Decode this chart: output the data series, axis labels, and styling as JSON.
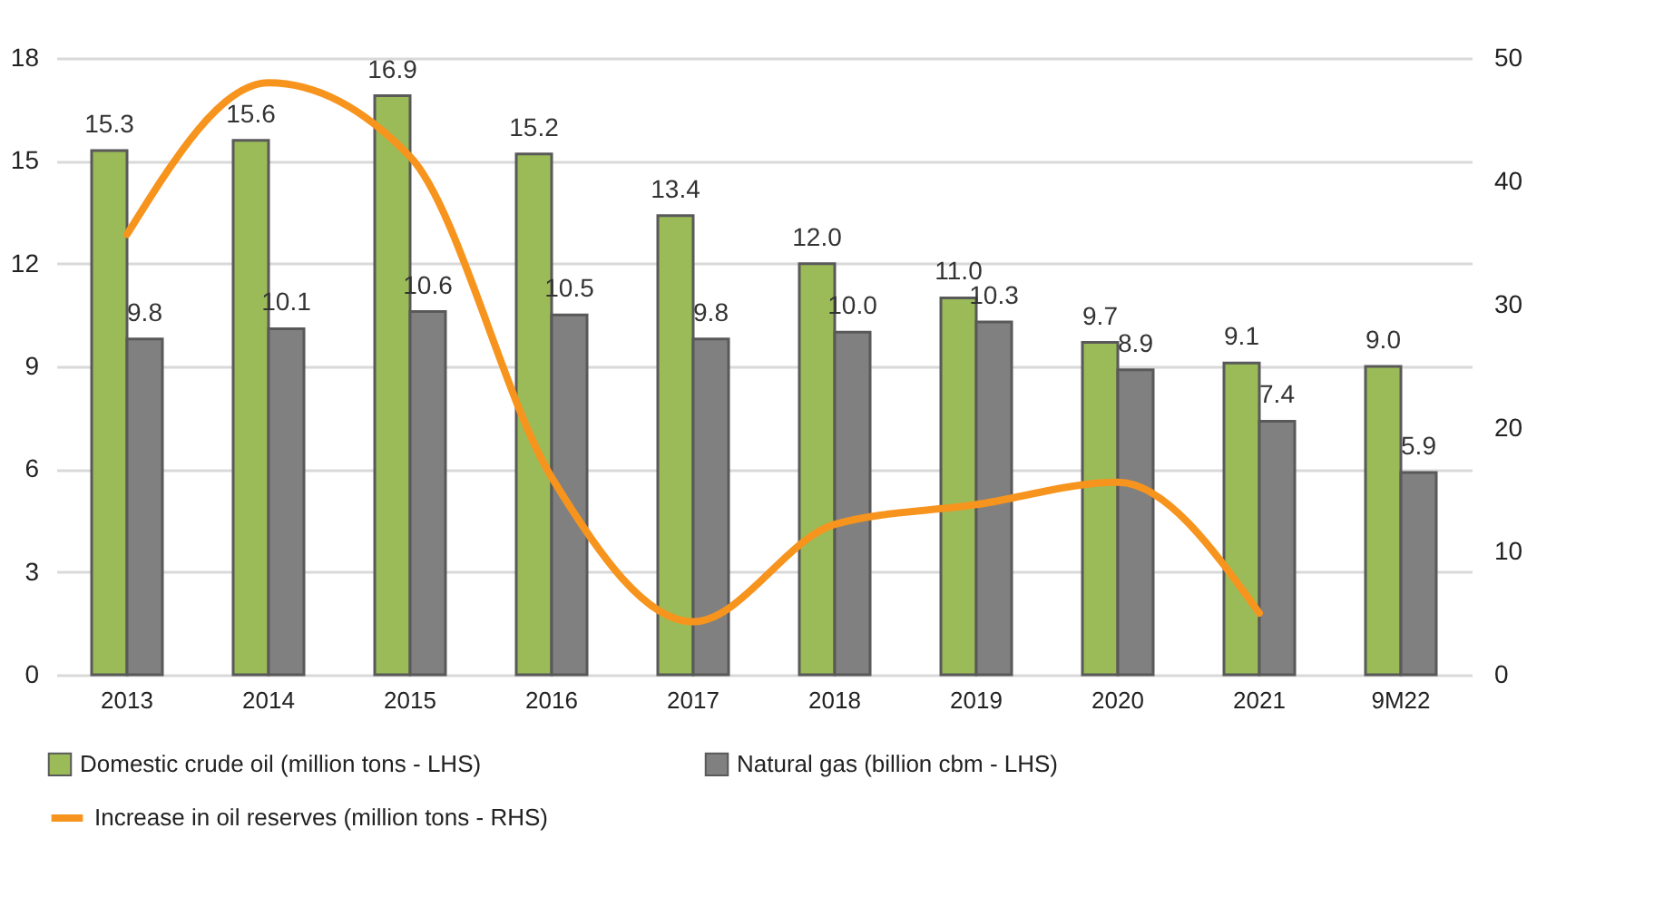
{
  "chart_data": {
    "type": "bar",
    "categories": [
      "2013",
      "2014",
      "2015",
      "2016",
      "2017",
      "2018",
      "2019",
      "2020",
      "2021",
      "9M22"
    ],
    "series": [
      {
        "name": "Domestic crude oil (million tons - LHS)",
        "color": "#9bbb59",
        "values": [
          15.3,
          15.6,
          16.9,
          15.2,
          13.4,
          12.0,
          11.0,
          9.7,
          9.1,
          9.0
        ],
        "value_labels": [
          "15.3",
          "15.6",
          "16.9",
          "15.2",
          "13.4",
          "12.0",
          "11.0",
          "9.7",
          "9.1",
          "9.0"
        ]
      },
      {
        "name": "Natural gas (billion cbm - LHS)",
        "color": "#808080",
        "values": [
          9.8,
          10.1,
          10.6,
          10.5,
          9.8,
          10.0,
          10.3,
          8.9,
          7.4,
          5.9
        ],
        "value_labels": [
          "9.8",
          "10.1",
          "10.6",
          "10.5",
          "9.8",
          "10.0",
          "10.3",
          "8.9",
          "7.4",
          "5.9"
        ]
      },
      {
        "name": "Increase in oil reserves (million tons - RHS)",
        "type": "line",
        "axis": "y2",
        "color": "#f7941d",
        "values": [
          35.7,
          48,
          42,
          16,
          4.3,
          12.2,
          13.8,
          15.6,
          5.0,
          null
        ]
      }
    ],
    "ylim": [
      0,
      18
    ],
    "yticks": [
      0,
      3,
      6,
      9,
      12,
      15,
      18
    ],
    "y2lim": [
      0,
      50
    ],
    "y2ticks": [
      0,
      10,
      20,
      30,
      40,
      50
    ],
    "grid": "y",
    "legend": "bottom",
    "marker": "none",
    "line_style": "solid"
  }
}
